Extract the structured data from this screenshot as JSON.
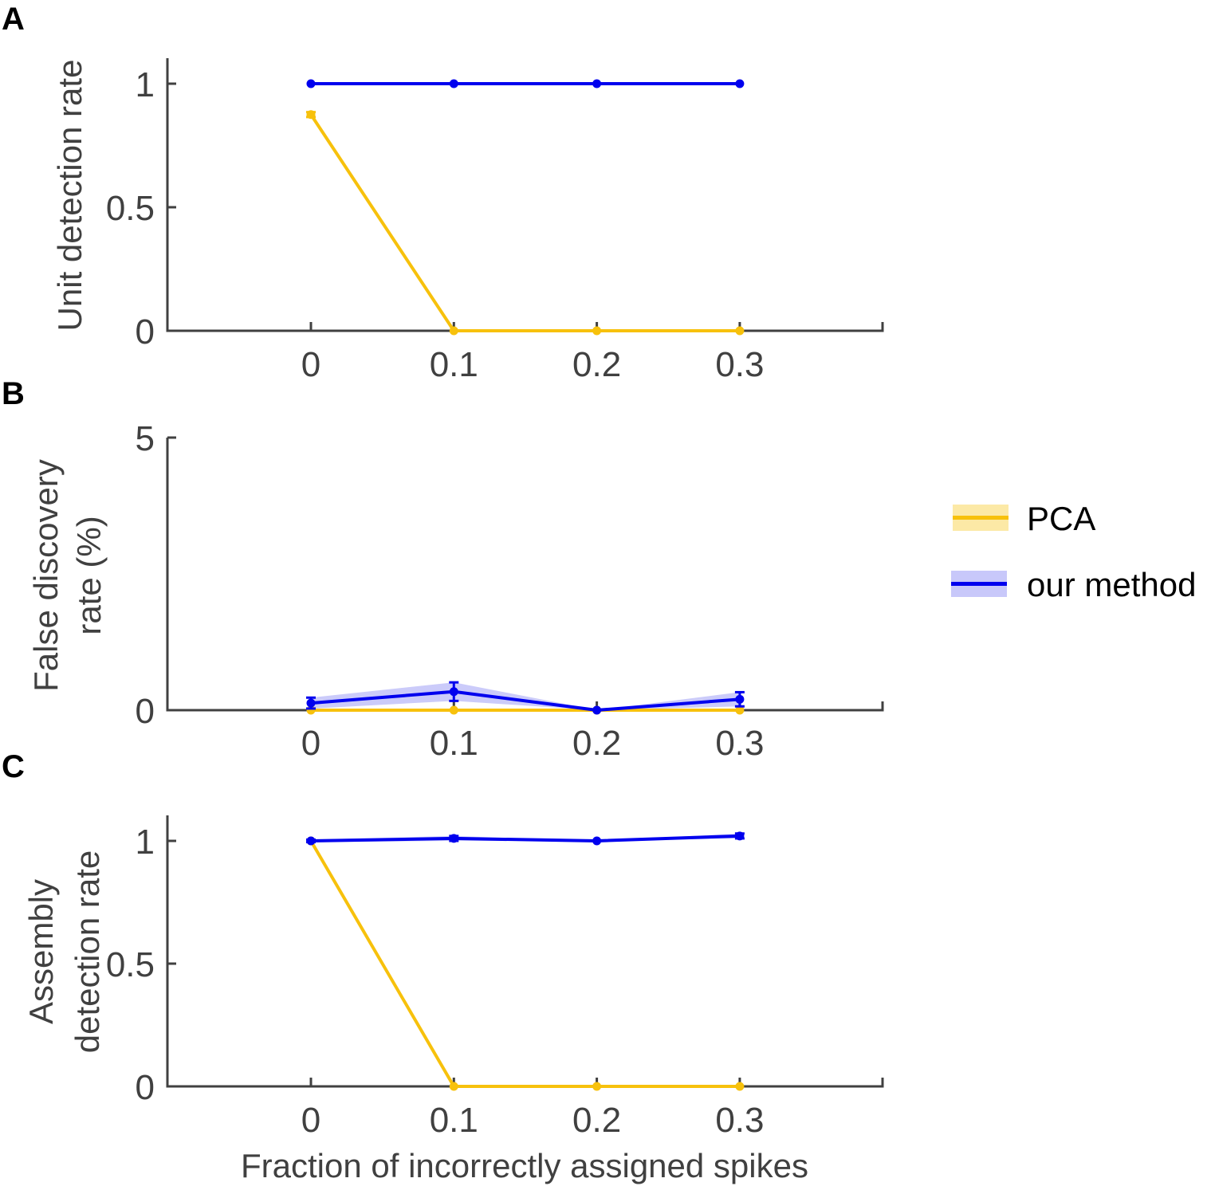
{
  "colors": {
    "pca": "#F7C10C",
    "pca_band": "#FCE9A6",
    "ours": "#0000EE",
    "ours_band": "#C8C8FA",
    "axis": "#404040"
  },
  "legend": {
    "items": [
      {
        "label": "PCA",
        "series": "pca"
      },
      {
        "label": "our method",
        "series": "ours"
      }
    ],
    "placement": "right"
  },
  "chart_data": [
    {
      "panel": "A",
      "type": "line",
      "title": "",
      "xlabel": "",
      "ylabel": "Unit detection rate",
      "x": [
        0,
        0.1,
        0.2,
        0.3
      ],
      "xticks": [
        "0",
        "0.1",
        "0.2",
        "0.3"
      ],
      "xlim": [
        -0.1,
        0.4
      ],
      "yticks": [
        "0",
        "0.5",
        "1"
      ],
      "ylim": [
        0,
        1.1
      ],
      "series": [
        {
          "name": "PCA",
          "key": "pca",
          "values": [
            0.875,
            0,
            0,
            0
          ],
          "err": [
            0.01,
            0,
            0,
            0
          ]
        },
        {
          "name": "our method",
          "key": "ours",
          "values": [
            1,
            1,
            1,
            1
          ],
          "err": [
            0,
            0,
            0,
            0
          ]
        }
      ]
    },
    {
      "panel": "B",
      "type": "line",
      "title": "",
      "xlabel": "",
      "ylabel": [
        "False discovery",
        "rate (%)"
      ],
      "x": [
        0,
        0.1,
        0.2,
        0.3
      ],
      "xticks": [
        "0",
        "0.1",
        "0.2",
        "0.3"
      ],
      "xlim": [
        -0.1,
        0.4
      ],
      "yticks": [
        "0",
        "5"
      ],
      "ylim": [
        0,
        5
      ],
      "series": [
        {
          "name": "PCA",
          "key": "pca",
          "values": [
            0,
            0,
            0,
            0
          ],
          "err": [
            0,
            0,
            0,
            0
          ]
        },
        {
          "name": "our method",
          "key": "ours",
          "values": [
            0.13,
            0.34,
            0,
            0.2
          ],
          "err": [
            0.1,
            0.17,
            0,
            0.13
          ]
        }
      ]
    },
    {
      "panel": "C",
      "type": "line",
      "title": "",
      "xlabel": "Fraction of incorrectly assigned spikes",
      "ylabel": [
        "Assembly",
        "detection rate"
      ],
      "x": [
        0,
        0.1,
        0.2,
        0.3
      ],
      "xticks": [
        "0",
        "0.1",
        "0.2",
        "0.3"
      ],
      "xlim": [
        -0.1,
        0.4
      ],
      "yticks": [
        "0",
        "0.5",
        "1"
      ],
      "ylim": [
        0,
        1.1
      ],
      "series": [
        {
          "name": "PCA",
          "key": "pca",
          "values": [
            1,
            0,
            0,
            0
          ],
          "err": [
            0,
            0,
            0,
            0
          ]
        },
        {
          "name": "our method",
          "key": "ours",
          "values": [
            1.0,
            1.01,
            1.0,
            1.02
          ],
          "err": [
            0.005,
            0.01,
            0,
            0.01
          ]
        }
      ]
    }
  ]
}
